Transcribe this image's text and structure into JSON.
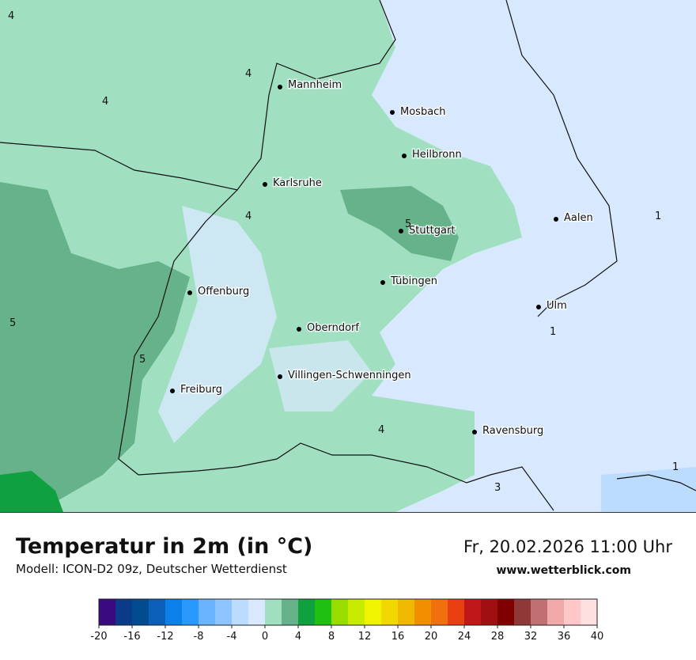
{
  "map": {
    "cities": [
      "Mannheim",
      "Mosbach",
      "Heilbronn",
      "Karlsruhe",
      "Aalen",
      "Stuttgart",
      "Tübingen",
      "Offenburg",
      "Ulm",
      "Oberndorf",
      "Villingen-Schwenningen",
      "Freiburg",
      "Ravensburg"
    ],
    "contour_labels": [
      "4",
      "4",
      "4",
      "4",
      "5",
      "1",
      "5",
      "5",
      "1",
      "4",
      "1",
      "3"
    ]
  },
  "footer": {
    "title": "Temperatur in 2m (in °C)",
    "subtitle": "Modell: ICON-D2 09z, Deutscher Wetterdienst",
    "date": "Fr, 20.02.2026 11:00 Uhr",
    "url": "www.wetterblick.com"
  },
  "colorbar": {
    "range": [
      -20,
      40
    ],
    "ticks": [
      -20,
      -16,
      -12,
      -8,
      -4,
      0,
      4,
      8,
      12,
      16,
      20,
      24,
      28,
      32,
      36,
      40
    ],
    "colors": [
      "#3a0a80",
      "#0a3a88",
      "#004a90",
      "#0a60b8",
      "#0a80e8",
      "#2898ff",
      "#6ab4ff",
      "#8ec4ff",
      "#bcdcff",
      "#d8e8ff",
      "#a0e0c0",
      "#66b28a",
      "#10a040",
      "#20c010",
      "#98dc00",
      "#c8ec00",
      "#f0f400",
      "#f0d800",
      "#f0b800",
      "#f09000",
      "#f07010",
      "#e84010",
      "#c01818",
      "#a01010",
      "#800000",
      "#903838",
      "#c07070",
      "#f0a8a8",
      "#ffc8c8",
      "#ffe0e0"
    ]
  }
}
